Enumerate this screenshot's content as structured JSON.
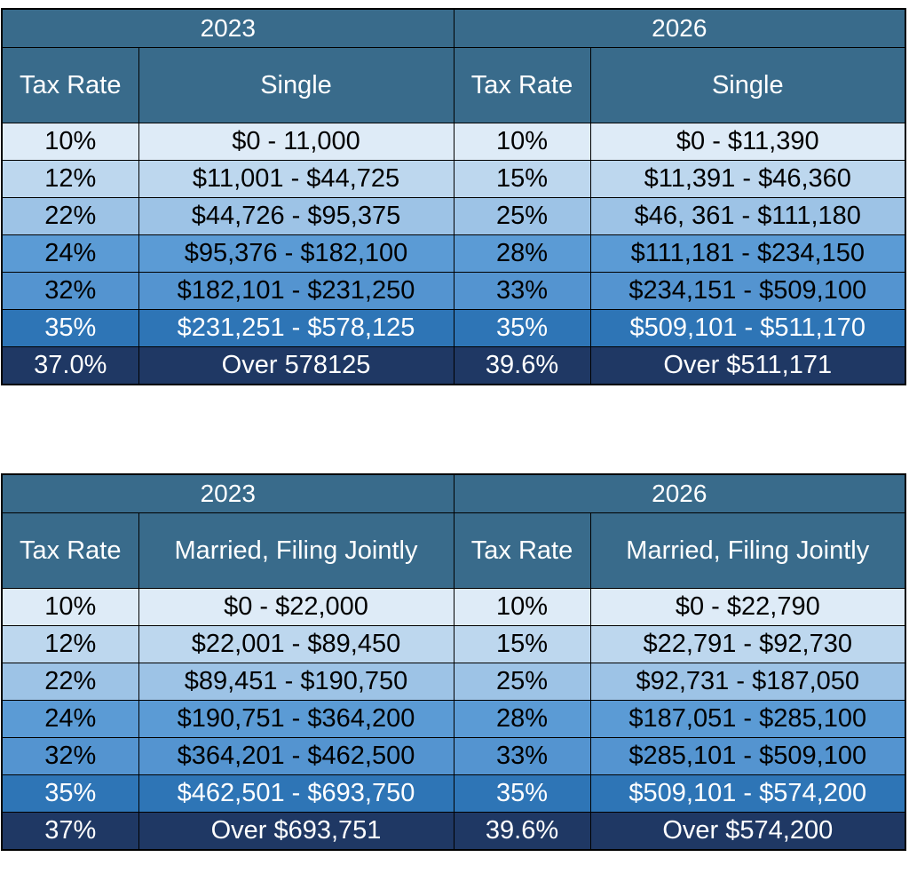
{
  "tables": [
    {
      "years": [
        "2023",
        "2026"
      ],
      "headers": {
        "left_rate": "Tax Rate",
        "left_status": "Single",
        "right_rate": "Tax Rate",
        "right_status": "Single"
      },
      "rows": [
        {
          "r2023": "10%",
          "b2023": "$0 - 11,000",
          "r2026": "10%",
          "b2026": "$0 - $11,390"
        },
        {
          "r2023": "12%",
          "b2023": "$11,001 - $44,725",
          "r2026": "15%",
          "b2026": "$11,391 - $46,360"
        },
        {
          "r2023": "22%",
          "b2023": "$44,726 - $95,375",
          "r2026": "25%",
          "b2026": "$46, 361 - $111,180"
        },
        {
          "r2023": "24%",
          "b2023": "$95,376 - $182,100",
          "r2026": "28%",
          "b2026": "$111,181 - $234,150"
        },
        {
          "r2023": "32%",
          "b2023": "$182,101 - $231,250",
          "r2026": "33%",
          "b2026": "$234,151 - $509,100"
        },
        {
          "r2023": "35%",
          "b2023": "$231,251 - $578,125",
          "r2026": "35%",
          "b2026": "$509,101 - $511,170"
        },
        {
          "r2023": "37.0%",
          "b2023": "Over 578125",
          "r2026": "39.6%",
          "b2026": "Over $511,171"
        }
      ]
    },
    {
      "years": [
        "2023",
        "2026"
      ],
      "headers": {
        "left_rate": "Tax Rate",
        "left_status": "Married, Filing Jointly",
        "right_rate": "Tax Rate",
        "right_status": "Married, Filing Jointly"
      },
      "rows": [
        {
          "r2023": "10%",
          "b2023": "$0 - $22,000",
          "r2026": "10%",
          "b2026": "$0 - $22,790"
        },
        {
          "r2023": "12%",
          "b2023": "$22,001 - $89,450",
          "r2026": "15%",
          "b2026": "$22,791 - $92,730"
        },
        {
          "r2023": "22%",
          "b2023": "$89,451 - $190,750",
          "r2026": "25%",
          "b2026": "$92,731 - $187,050"
        },
        {
          "r2023": "24%",
          "b2023": "$190,751 - $364,200",
          "r2026": "28%",
          "b2026": "$187,051 - $285,100"
        },
        {
          "r2023": "32%",
          "b2023": "$364,201 - $462,500",
          "r2026": "33%",
          "b2026": "$285,101 - $509,100"
        },
        {
          "r2023": "35%",
          "b2023": "$462,501 - $693,750",
          "r2026": "35%",
          "b2026": "$509,101 - $574,200"
        },
        {
          "r2023": "37%",
          "b2023": "Over $693,751",
          "r2026": "39.6%",
          "b2026": "Over $574,200"
        }
      ]
    }
  ],
  "colors": {
    "header_bg": "#396b8b",
    "row_fills": [
      "#deebf7",
      "#bdd7ee",
      "#9dc3e6",
      "#5b9bd5",
      "#5494d0",
      "#2e75b6",
      "#1f3864"
    ]
  }
}
